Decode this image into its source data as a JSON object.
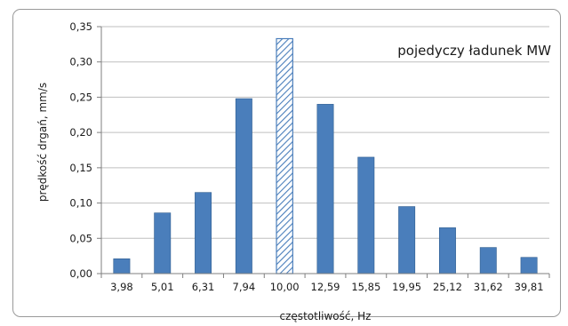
{
  "chart_data": {
    "type": "bar",
    "title": "",
    "annotation": "pojedyczy ładunek MW",
    "xlabel": "częstotliwość, Hz",
    "ylabel": "prędkość drgań, mm/s",
    "categories": [
      "3,98",
      "5,01",
      "6,31",
      "7,94",
      "10,00",
      "12,59",
      "15,85",
      "19,95",
      "25,12",
      "31,62",
      "39,81"
    ],
    "values": [
      0.021,
      0.086,
      0.115,
      0.248,
      0.333,
      0.24,
      0.165,
      0.095,
      0.065,
      0.037,
      0.023
    ],
    "highlight_index": 4,
    "highlight_style": "hatched",
    "ylim": [
      0,
      0.35
    ],
    "yticks": [
      0.0,
      0.05,
      0.1,
      0.15,
      0.2,
      0.25,
      0.3,
      0.35
    ],
    "ytick_labels": [
      "0,00",
      "0,05",
      "0,10",
      "0,15",
      "0,20",
      "0,25",
      "0,30",
      "0,35"
    ],
    "grid": true,
    "colors": {
      "bar": "#4A7EBB",
      "bar_edge": "#2F5D8F",
      "hatch": "#4A7EBB",
      "grid": "#bfbfbf"
    }
  }
}
